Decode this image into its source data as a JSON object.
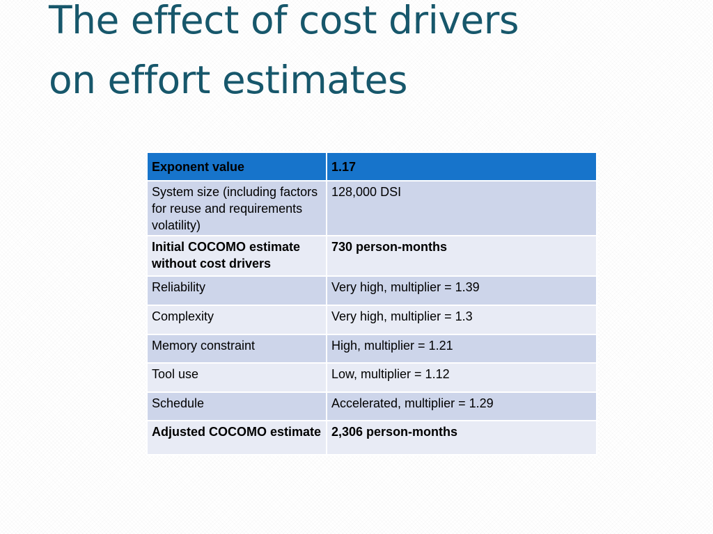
{
  "title": {
    "line1": "The effect of cost drivers",
    "line2": "on effort estimates"
  },
  "table": {
    "header": {
      "label": "Exponent value",
      "value": "1.17"
    },
    "rows": [
      {
        "label": "System size (including factors for reuse and requirements volatility)",
        "value": "128,000 DSI"
      },
      {
        "label": "Initial COCOMO estimate without cost drivers",
        "value": "730 person-months"
      },
      {
        "label": "Reliability",
        "value": "Very high, multiplier = 1.39"
      },
      {
        "label": "Complexity",
        "value": "Very high, multiplier = 1.3"
      },
      {
        "label": "Memory constraint",
        "value": "High, multiplier = 1.21"
      },
      {
        "label": "Tool use",
        "value": "Low, multiplier = 1.12"
      },
      {
        "label": "Schedule",
        "value": "Accelerated, multiplier = 1.29"
      },
      {
        "label": "Adjusted COCOMO estimate",
        "value": "2,306 person-months"
      }
    ]
  },
  "colors": {
    "title": "#17576b",
    "header_bg": "#1774cb",
    "row_band_dark": "#cdd5ea",
    "row_band_light": "#e8ebf5"
  }
}
